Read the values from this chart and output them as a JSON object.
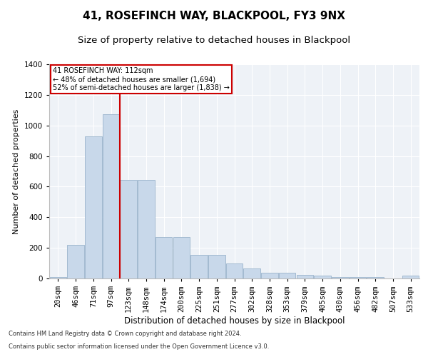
{
  "title": "41, ROSEFINCH WAY, BLACKPOOL, FY3 9NX",
  "subtitle": "Size of property relative to detached houses in Blackpool",
  "xlabel": "Distribution of detached houses by size in Blackpool",
  "ylabel": "Number of detached properties",
  "footnote1": "Contains HM Land Registry data © Crown copyright and database right 2024.",
  "footnote2": "Contains public sector information licensed under the Open Government Licence v3.0.",
  "annotation_line1": "41 ROSEFINCH WAY: 112sqm",
  "annotation_line2": "← 48% of detached houses are smaller (1,694)",
  "annotation_line3": "52% of semi-detached houses are larger (1,838) →",
  "bar_color": "#c8d8ea",
  "bar_edge_color": "#9ab4cc",
  "ref_line_color": "#cc0000",
  "ref_line_x": 4,
  "categories": [
    "20sqm",
    "46sqm",
    "71sqm",
    "97sqm",
    "123sqm",
    "148sqm",
    "174sqm",
    "200sqm",
    "225sqm",
    "251sqm",
    "277sqm",
    "302sqm",
    "328sqm",
    "353sqm",
    "379sqm",
    "405sqm",
    "430sqm",
    "456sqm",
    "482sqm",
    "507sqm",
    "533sqm"
  ],
  "values": [
    10,
    220,
    930,
    1075,
    645,
    645,
    270,
    270,
    155,
    155,
    100,
    65,
    38,
    38,
    22,
    18,
    10,
    10,
    8,
    0,
    18
  ],
  "ylim": [
    0,
    1400
  ],
  "yticks": [
    0,
    200,
    400,
    600,
    800,
    1000,
    1200,
    1400
  ],
  "background_color": "#eef2f7",
  "title_fontsize": 11,
  "subtitle_fontsize": 9.5,
  "xlabel_fontsize": 8.5,
  "ylabel_fontsize": 8,
  "tick_fontsize": 7.5,
  "footnote_fontsize": 6
}
